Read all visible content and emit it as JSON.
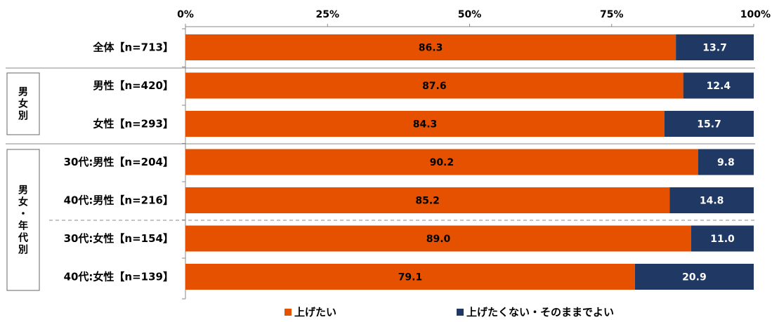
{
  "chart_data": {
    "type": "bar",
    "orientation": "horizontal",
    "stacked": true,
    "xlim": [
      0,
      100
    ],
    "x_ticks": [
      "0%",
      "25%",
      "50%",
      "75%",
      "100%"
    ],
    "categories": [
      "全体【n=713】",
      "男性【n=420】",
      "女性【n=293】",
      "30代:男性【n=204】",
      "40代:男性【n=216】",
      "30代:女性【n=154】",
      "40代:女性【n=139】"
    ],
    "series": [
      {
        "name": "上げたい",
        "color": "#E65100",
        "values": [
          86.3,
          87.6,
          84.3,
          90.2,
          85.2,
          89.0,
          79.1
        ],
        "labels": [
          "86.3",
          "87.6",
          "84.3",
          "90.2",
          "85.2",
          "89.0",
          "79.1"
        ]
      },
      {
        "name": "上げたくない・そのままでよい",
        "color": "#1F3864",
        "values": [
          13.7,
          12.4,
          15.7,
          9.8,
          14.8,
          11.0,
          20.9
        ],
        "labels": [
          "13.7",
          "12.4",
          "15.7",
          "9.8",
          "14.8",
          "11.0",
          "20.9"
        ]
      }
    ],
    "groups": [
      {
        "label": [
          "男",
          "女",
          "別"
        ]
      },
      {
        "label": [
          "男",
          "女",
          "・",
          "年",
          "代",
          "別"
        ]
      }
    ],
    "grid": false,
    "legend_position": "bottom"
  }
}
